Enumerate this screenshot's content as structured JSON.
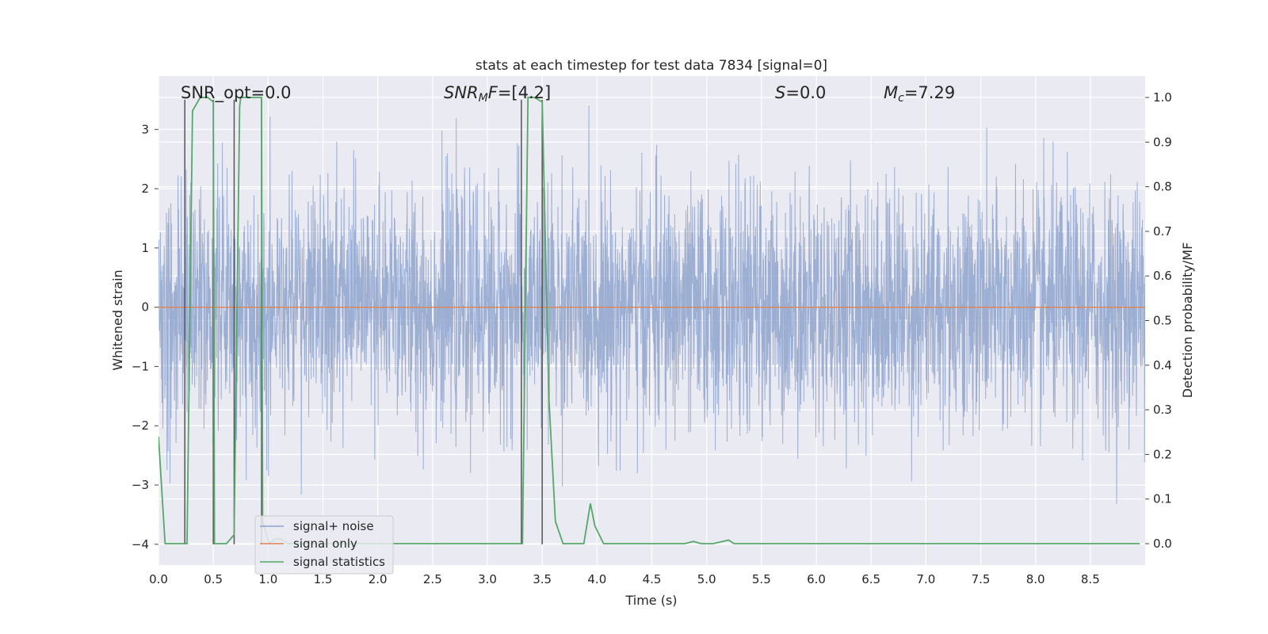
{
  "chart_data": {
    "type": "line",
    "title": "stats at each timestep for test data 7834 [signal=0]",
    "xlabel": "Time (s)",
    "ylabel": "Whitened strain",
    "y2label": "Detection probability/MF",
    "xlim": [
      0,
      9
    ],
    "ylim": [
      -4.35,
      3.9
    ],
    "y2lim": [
      -0.048,
      1.048
    ],
    "x_ticks": [
      0.0,
      0.5,
      1.0,
      1.5,
      2.0,
      2.5,
      3.0,
      3.5,
      4.0,
      4.5,
      5.0,
      5.5,
      6.0,
      6.5,
      7.0,
      7.5,
      8.0,
      8.5
    ],
    "x_tick_labels": [
      "0.0",
      "0.5",
      "1.0",
      "1.5",
      "2.0",
      "2.5",
      "3.0",
      "3.5",
      "4.0",
      "4.5",
      "5.0",
      "5.5",
      "6.0",
      "6.5",
      "7.0",
      "7.5",
      "8.0",
      "8.5"
    ],
    "y_ticks": [
      -4,
      -3,
      -2,
      -1,
      0,
      1,
      2,
      3
    ],
    "y_tick_labels": [
      "−4",
      "−3",
      "−2",
      "−1",
      "0",
      "1",
      "2",
      "3"
    ],
    "y2_ticks": [
      0.0,
      0.1,
      0.2,
      0.3,
      0.4,
      0.5,
      0.6,
      0.7,
      0.8,
      0.9,
      1.0
    ],
    "y2_tick_labels": [
      "0.0",
      "0.1",
      "0.2",
      "0.3",
      "0.4",
      "0.5",
      "0.6",
      "0.7",
      "0.8",
      "0.9",
      "1.0"
    ],
    "annotations": {
      "snr_opt": "SNR_opt=0.0",
      "snr_mf_prefix": "SNR",
      "snr_mf_sub": "M",
      "snr_mf_rest": "F=[4.2]",
      "s_prefix": "S",
      "s_rest": "=0.0",
      "mc_prefix": "M",
      "mc_sub": "c",
      "mc_rest": "=7.29"
    },
    "legend": {
      "position": "lower-left",
      "entries": [
        "signal+ noise",
        "signal only",
        "signal statistics"
      ]
    },
    "series": [
      {
        "name": "signal+ noise",
        "color": "#8ea3cc",
        "description": "whitened noise, approximately gaussian, sigma ~ 1, spikes to about +/-3.3",
        "sigma": 1.0
      },
      {
        "name": "signal only",
        "color": "#dd8452",
        "value": 0
      },
      {
        "name": "signal statistics",
        "color": "#55a868",
        "x": [
          0.0,
          0.06,
          0.12,
          0.18,
          0.24,
          0.26,
          0.31,
          0.38,
          0.45,
          0.5,
          0.51,
          0.56,
          0.62,
          0.69,
          0.74,
          0.75,
          0.79,
          0.85,
          0.94,
          0.95,
          1.01,
          1.06,
          1.12,
          1.18,
          1.25,
          1.5,
          2.0,
          2.3,
          2.5,
          3.0,
          3.25,
          3.31,
          3.32,
          3.37,
          3.43,
          3.5,
          3.56,
          3.62,
          3.69,
          3.75,
          3.81,
          3.88,
          3.94,
          3.98,
          4.06,
          4.2,
          4.5,
          4.6,
          4.8,
          4.88,
          4.95,
          5.06,
          5.2,
          5.25,
          5.5,
          8.95
        ],
        "values": [
          0.24,
          0.0,
          0.0,
          0.0,
          0.0,
          0.0,
          0.97,
          1.0,
          1.0,
          0.99,
          0.0,
          0.0,
          0.0,
          0.02,
          0.98,
          1.0,
          1.0,
          1.0,
          1.0,
          0.05,
          0.0,
          0.01,
          0.01,
          0.0,
          0.0,
          0.0,
          0.0,
          0.0,
          0.0,
          0.0,
          0.0,
          0.0,
          0.0,
          1.0,
          1.0,
          0.99,
          0.33,
          0.05,
          0.0,
          0.0,
          0.0,
          0.0,
          0.09,
          0.04,
          0.0,
          0.0,
          0.0,
          0.0,
          0.0,
          0.005,
          0.0,
          0.0,
          0.008,
          0.0,
          0.0,
          0.0
        ]
      }
    ],
    "vertical_markers": [
      {
        "x": 0.24,
        "ymin": -4,
        "ymax": 3.5
      },
      {
        "x": 0.5,
        "ymin": -4,
        "ymax": 3.5
      },
      {
        "x": 0.69,
        "ymin": -4,
        "ymax": 3.5
      },
      {
        "x": 0.94,
        "ymin": -4,
        "ymax": 3.5
      },
      {
        "x": 3.31,
        "ymin": -4,
        "ymax": 3.5
      },
      {
        "x": 3.5,
        "ymin": -4,
        "ymax": 3.5
      }
    ]
  },
  "colors": {
    "plot_bg": "#eaeaf2",
    "grid": "#ffffff",
    "marker": "#555555"
  }
}
